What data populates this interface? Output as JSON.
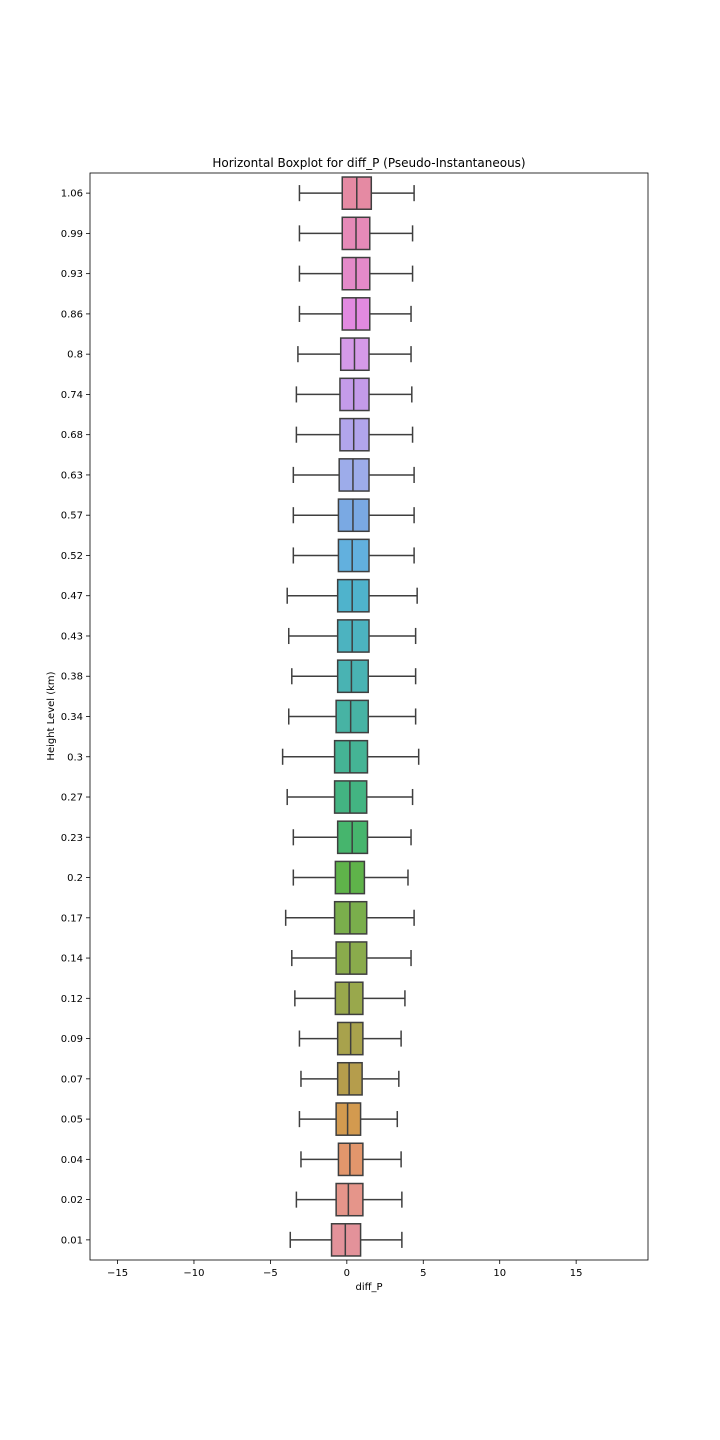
{
  "chart_data": {
    "type": "boxplot",
    "orientation": "horizontal",
    "title": "Horizontal Boxplot for diff_P (Pseudo-Instantaneous)",
    "xlabel": "diff_P",
    "ylabel": "Height Level (km)",
    "xlim": [
      -16.8,
      19.7
    ],
    "xticks": [
      -15,
      -10,
      -5,
      0,
      5,
      10,
      15
    ],
    "xtick_labels": [
      "−15",
      "−10",
      "−5",
      "0",
      "5",
      "10",
      "15"
    ],
    "grid": false,
    "categories": [
      "1.06",
      "0.99",
      "0.93",
      "0.86",
      "0.8",
      "0.74",
      "0.68",
      "0.63",
      "0.57",
      "0.52",
      "0.47",
      "0.43",
      "0.38",
      "0.34",
      "0.3",
      "0.27",
      "0.23",
      "0.2",
      "0.17",
      "0.14",
      "0.12",
      "0.09",
      "0.07",
      "0.05",
      "0.04",
      "0.02",
      "0.01"
    ],
    "boxes": [
      {
        "label": "1.06",
        "whislo": -3.1,
        "q1": -0.3,
        "med": 0.65,
        "q3": 1.6,
        "whishi": 4.4,
        "color": "#e58aa3"
      },
      {
        "label": "0.99",
        "whislo": -3.1,
        "q1": -0.3,
        "med": 0.6,
        "q3": 1.5,
        "whishi": 4.3,
        "color": "#e68ab8"
      },
      {
        "label": "0.93",
        "whislo": -3.1,
        "q1": -0.3,
        "med": 0.6,
        "q3": 1.5,
        "whishi": 4.3,
        "color": "#e48ac9"
      },
      {
        "label": "0.86",
        "whislo": -3.1,
        "q1": -0.3,
        "med": 0.6,
        "q3": 1.5,
        "whishi": 4.2,
        "color": "#e28ae0"
      },
      {
        "label": "0.8",
        "whislo": -3.2,
        "q1": -0.4,
        "med": 0.5,
        "q3": 1.45,
        "whishi": 4.2,
        "color": "#d59ae8"
      },
      {
        "label": "0.74",
        "whislo": -3.3,
        "q1": -0.45,
        "med": 0.45,
        "q3": 1.45,
        "whishi": 4.25,
        "color": "#c49be9"
      },
      {
        "label": "0.68",
        "whislo": -3.3,
        "q1": -0.45,
        "med": 0.45,
        "q3": 1.45,
        "whishi": 4.3,
        "color": "#b1a5ec"
      },
      {
        "label": "0.63",
        "whislo": -3.5,
        "q1": -0.5,
        "med": 0.4,
        "q3": 1.45,
        "whishi": 4.4,
        "color": "#9dacea"
      },
      {
        "label": "0.57",
        "whislo": -3.5,
        "q1": -0.55,
        "med": 0.4,
        "q3": 1.45,
        "whishi": 4.4,
        "color": "#7aa9e3"
      },
      {
        "label": "0.52",
        "whislo": -3.5,
        "q1": -0.55,
        "med": 0.35,
        "q3": 1.45,
        "whishi": 4.4,
        "color": "#62b0de"
      },
      {
        "label": "0.47",
        "whislo": -3.9,
        "q1": -0.6,
        "med": 0.35,
        "q3": 1.45,
        "whishi": 4.6,
        "color": "#4fb3cc"
      },
      {
        "label": "0.43",
        "whislo": -3.8,
        "q1": -0.6,
        "med": 0.35,
        "q3": 1.45,
        "whishi": 4.5,
        "color": "#4cb3c0"
      },
      {
        "label": "0.38",
        "whislo": -3.6,
        "q1": -0.6,
        "med": 0.3,
        "q3": 1.4,
        "whishi": 4.5,
        "color": "#49b3b3"
      },
      {
        "label": "0.34",
        "whislo": -3.8,
        "q1": -0.7,
        "med": 0.25,
        "q3": 1.4,
        "whishi": 4.5,
        "color": "#47b3a4"
      },
      {
        "label": "0.3",
        "whislo": -4.2,
        "q1": -0.8,
        "med": 0.2,
        "q3": 1.35,
        "whishi": 4.7,
        "color": "#45b495"
      },
      {
        "label": "0.27",
        "whislo": -3.9,
        "q1": -0.8,
        "med": 0.2,
        "q3": 1.3,
        "whishi": 4.3,
        "color": "#43b482"
      },
      {
        "label": "0.23",
        "whislo": -3.5,
        "q1": -0.6,
        "med": 0.35,
        "q3": 1.35,
        "whishi": 4.2,
        "color": "#46b56d"
      },
      {
        "label": "0.2",
        "whislo": -3.5,
        "q1": -0.75,
        "med": 0.2,
        "q3": 1.15,
        "whishi": 4.0,
        "color": "#5fb34a"
      },
      {
        "label": "0.17",
        "whislo": -4.0,
        "q1": -0.8,
        "med": 0.2,
        "q3": 1.3,
        "whishi": 4.4,
        "color": "#7aae4c"
      },
      {
        "label": "0.14",
        "whislo": -3.6,
        "q1": -0.7,
        "med": 0.2,
        "q3": 1.3,
        "whishi": 4.2,
        "color": "#8aab4c"
      },
      {
        "label": "0.12",
        "whislo": -3.4,
        "q1": -0.75,
        "med": 0.15,
        "q3": 1.05,
        "whishi": 3.8,
        "color": "#99a84c"
      },
      {
        "label": "0.09",
        "whislo": -3.1,
        "q1": -0.6,
        "med": 0.25,
        "q3": 1.05,
        "whishi": 3.55,
        "color": "#a8a24c"
      },
      {
        "label": "0.07",
        "whislo": -3.0,
        "q1": -0.6,
        "med": 0.15,
        "q3": 1.0,
        "whishi": 3.4,
        "color": "#b59d4c"
      },
      {
        "label": "0.05",
        "whislo": -3.1,
        "q1": -0.7,
        "med": 0.05,
        "q3": 0.9,
        "whishi": 3.3,
        "color": "#d39a4f"
      },
      {
        "label": "0.04",
        "whislo": -3.0,
        "q1": -0.55,
        "med": 0.2,
        "q3": 1.05,
        "whishi": 3.55,
        "color": "#e2966c"
      },
      {
        "label": "0.02",
        "whislo": -3.3,
        "q1": -0.7,
        "med": 0.1,
        "q3": 1.05,
        "whishi": 3.6,
        "color": "#e5958a"
      },
      {
        "label": "0.01",
        "whislo": -3.7,
        "q1": -1.0,
        "med": -0.1,
        "q3": 0.9,
        "whishi": 3.6,
        "color": "#e3929a"
      }
    ]
  }
}
